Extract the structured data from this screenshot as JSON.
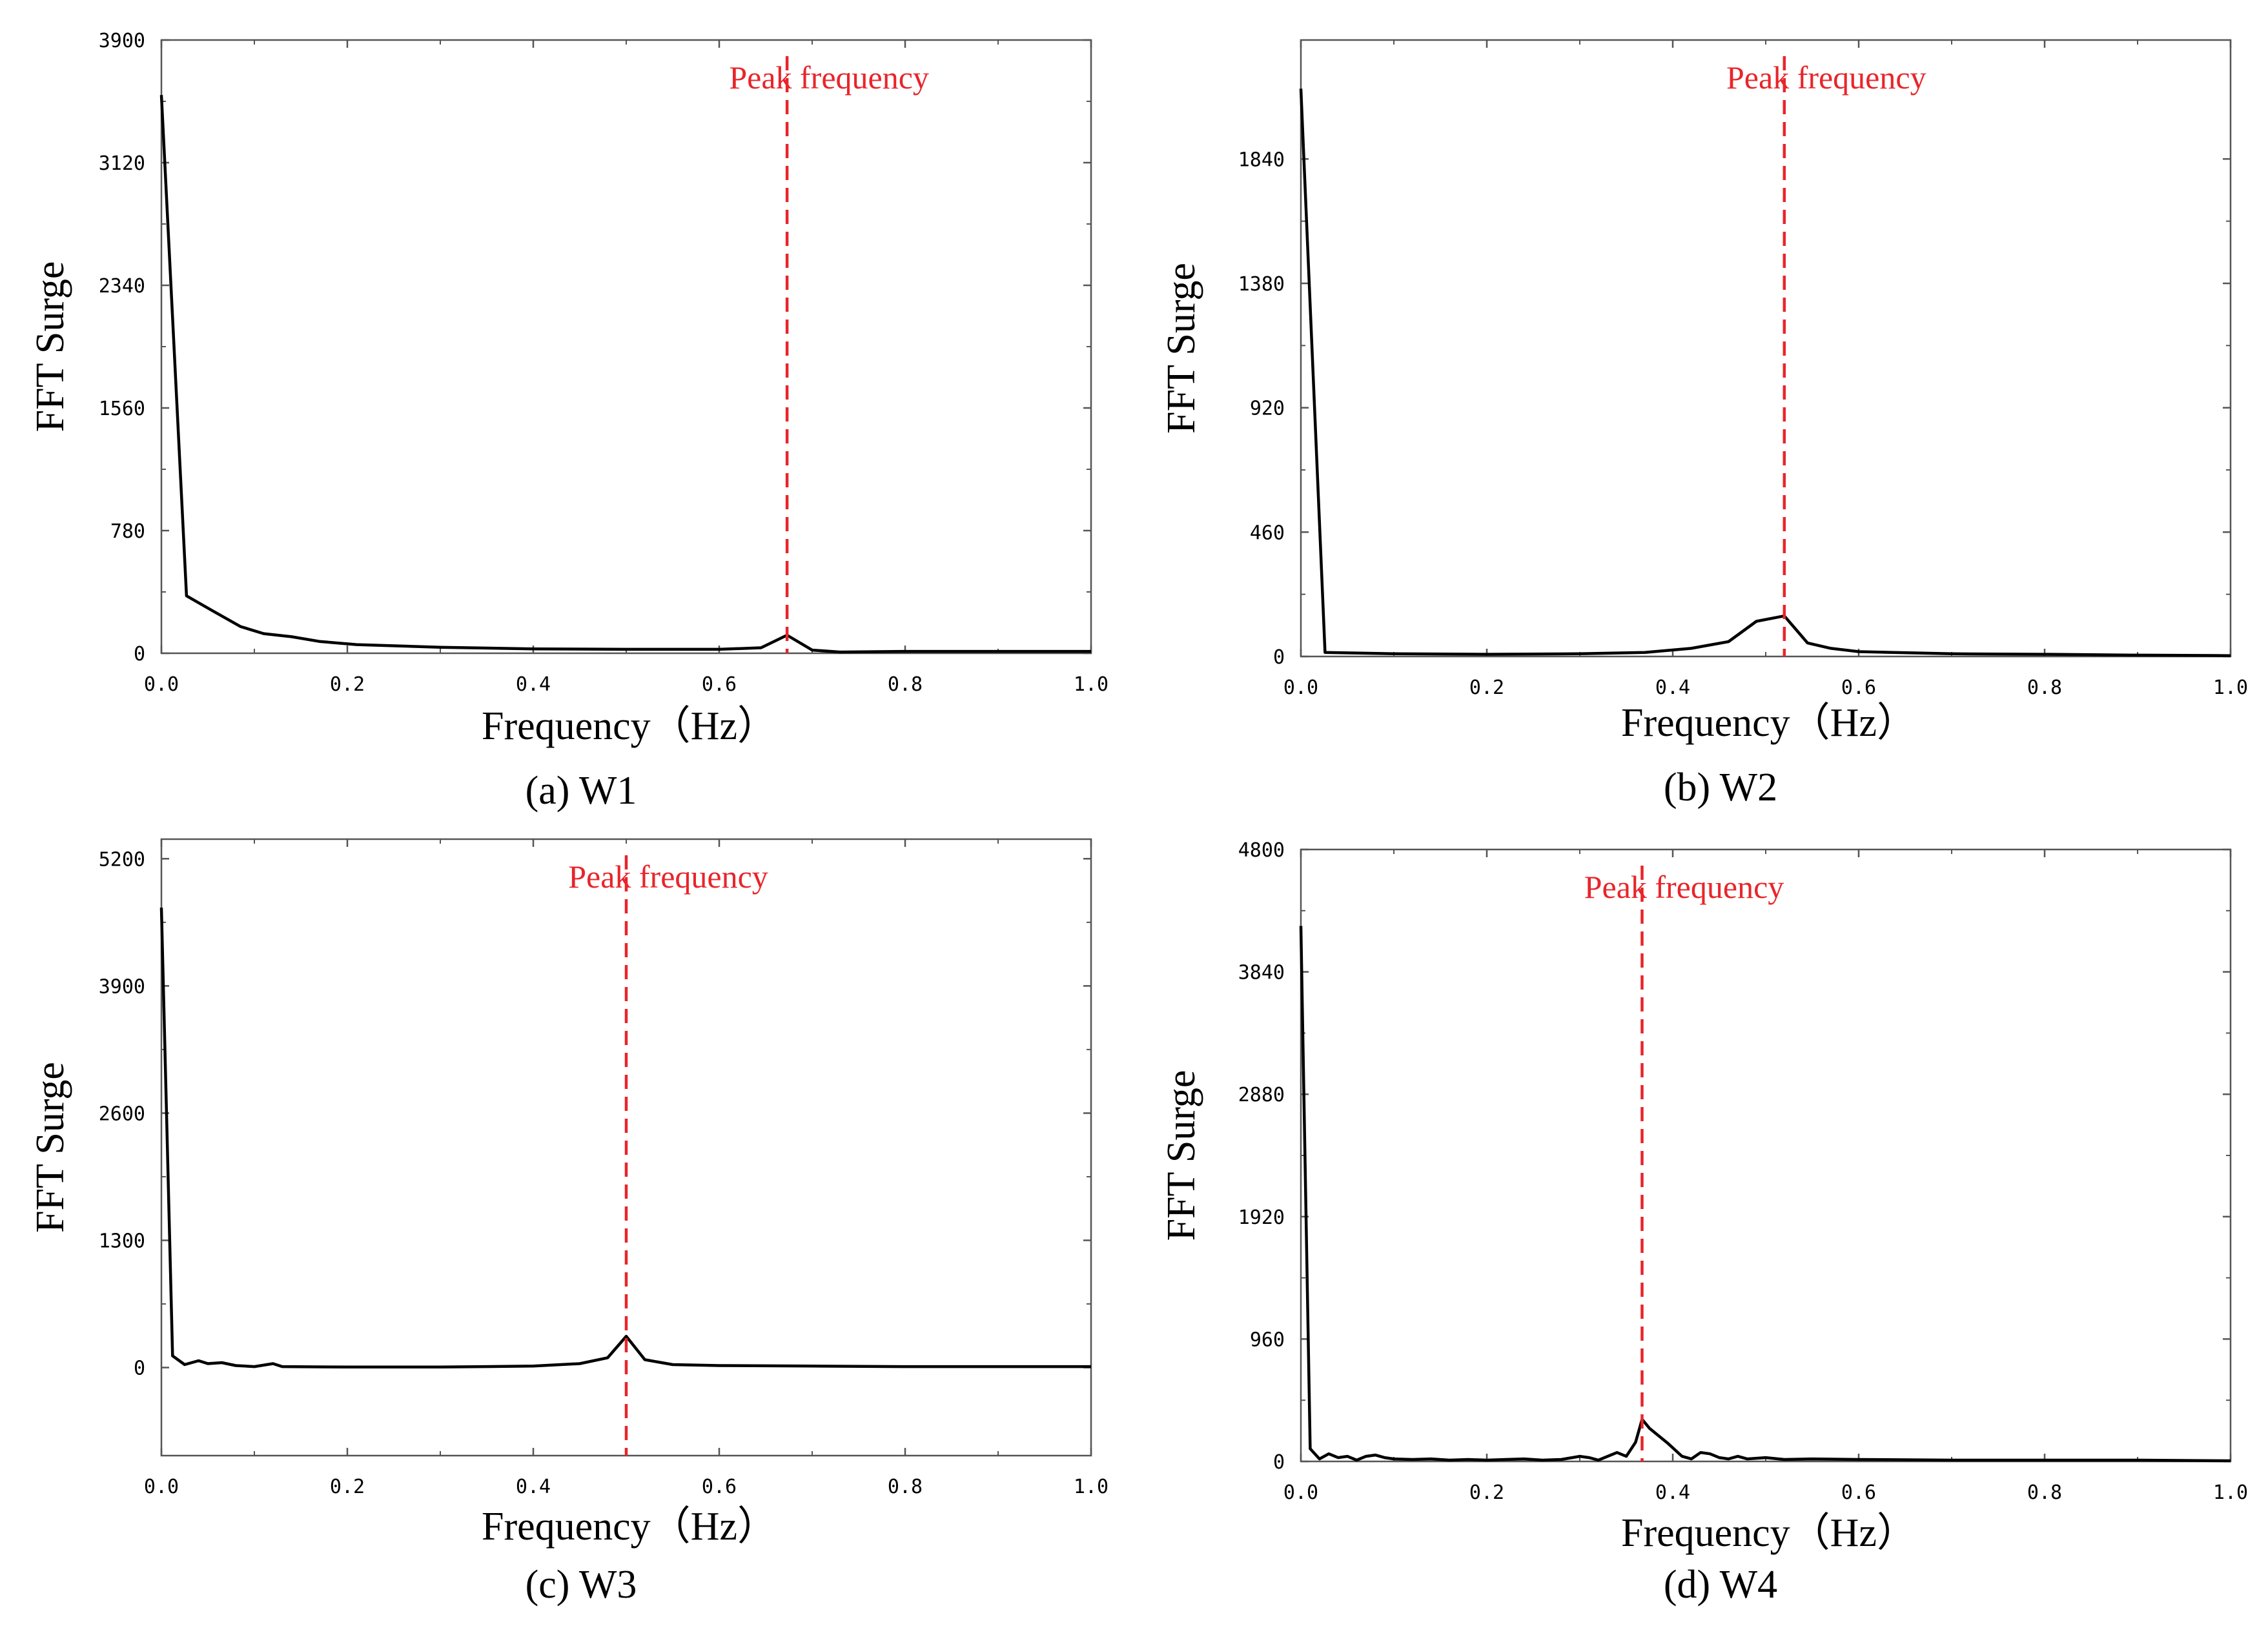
{
  "colors": {
    "series": "#000000",
    "peak_line": "#e8252a",
    "axes": "#555555"
  },
  "chart_data": [
    {
      "id": "a",
      "type": "line",
      "caption": "(a)  W1",
      "xlabel": "Frequency（Hz）",
      "ylabel": "FFT  Surge",
      "xlim": [
        0,
        1.0
      ],
      "ylim": [
        0,
        3900
      ],
      "xticks": [
        0,
        0.2,
        0.4,
        0.6,
        0.8,
        1.0
      ],
      "xtick_labels": [
        "0.0",
        "0.2",
        "0.4",
        "0.6",
        "0.8",
        "1.0"
      ],
      "yticks": [
        0,
        780,
        1560,
        2340,
        3120,
        3900
      ],
      "ytick_labels": [
        "0",
        "780",
        "1560",
        "2340",
        "3120",
        "3900"
      ],
      "annotation": {
        "text": "Peak frequency",
        "x": 0.673
      },
      "series": [
        {
          "name": "W1",
          "x": [
            0,
            0.027,
            0.055,
            0.085,
            0.11,
            0.14,
            0.17,
            0.21,
            0.3,
            0.4,
            0.5,
            0.6,
            0.645,
            0.673,
            0.7,
            0.73,
            0.8,
            0.9,
            1.0
          ],
          "y": [
            3550,
            365,
            270,
            170,
            125,
            105,
            75,
            55,
            38,
            28,
            25,
            25,
            35,
            115,
            20,
            8,
            12,
            12,
            12
          ]
        }
      ]
    },
    {
      "id": "b",
      "type": "line",
      "caption": "(b)  W2",
      "xlabel": "Frequency（Hz）",
      "ylabel": "FFT  Surge",
      "xlim": [
        0,
        1.0
      ],
      "ylim": [
        0,
        2280
      ],
      "xticks": [
        0,
        0.2,
        0.4,
        0.6,
        0.8,
        1.0
      ],
      "xtick_labels": [
        "0.0",
        "0.2",
        "0.4",
        "0.6",
        "0.8",
        "1.0"
      ],
      "yticks": [
        0,
        460,
        920,
        1380,
        1840
      ],
      "ytick_labels": [
        "0",
        "460",
        "920",
        "1380",
        "1840"
      ],
      "annotation": {
        "text": "Peak frequency",
        "x": 0.52
      },
      "series": [
        {
          "name": "W2",
          "x": [
            0,
            0.026,
            0.1,
            0.2,
            0.3,
            0.37,
            0.42,
            0.46,
            0.49,
            0.52,
            0.545,
            0.57,
            0.6,
            0.7,
            0.8,
            0.9,
            1.0
          ],
          "y": [
            2100,
            15,
            10,
            8,
            10,
            15,
            30,
            55,
            130,
            150,
            50,
            30,
            18,
            10,
            8,
            5,
            3
          ]
        }
      ]
    },
    {
      "id": "c",
      "type": "line",
      "caption": "(c)  W3",
      "xlabel": "Frequency（Hz）",
      "ylabel": "FFT  Surge",
      "xlim": [
        0,
        1.0
      ],
      "ylim": [
        -900,
        5400
      ],
      "xticks": [
        0,
        0.2,
        0.4,
        0.6,
        0.8,
        1.0
      ],
      "xtick_labels": [
        "0.0",
        "0.2",
        "0.4",
        "0.6",
        "0.8",
        "1.0"
      ],
      "yticks": [
        0,
        1300,
        2600,
        3900,
        5200
      ],
      "ytick_labels": [
        "0",
        "1300",
        "2600",
        "3900",
        "5200"
      ],
      "annotation": {
        "text": "Peak frequency",
        "x": 0.5
      },
      "series": [
        {
          "name": "W3",
          "x": [
            0,
            0.012,
            0.025,
            0.04,
            0.05,
            0.065,
            0.08,
            0.1,
            0.12,
            0.13,
            0.2,
            0.3,
            0.4,
            0.45,
            0.48,
            0.5,
            0.52,
            0.55,
            0.6,
            0.7,
            0.8,
            0.9,
            1.0
          ],
          "y": [
            4700,
            120,
            30,
            70,
            40,
            50,
            20,
            10,
            40,
            10,
            5,
            5,
            15,
            40,
            100,
            320,
            80,
            30,
            20,
            15,
            10,
            10,
            10
          ]
        }
      ]
    },
    {
      "id": "d",
      "type": "line",
      "caption": "(d)  W4",
      "xlabel": "Frequency（Hz）",
      "ylabel": "FFT  Surge",
      "xlim": [
        0,
        1.0
      ],
      "ylim": [
        0,
        4800
      ],
      "xticks": [
        0,
        0.2,
        0.4,
        0.6,
        0.8,
        1.0
      ],
      "xtick_labels": [
        "0.0",
        "0.2",
        "0.4",
        "0.6",
        "0.8",
        "1.0"
      ],
      "yticks": [
        0,
        960,
        1920,
        2880,
        3840,
        4800
      ],
      "ytick_labels": [
        "0",
        "960",
        "1920",
        "2880",
        "3840",
        "4800"
      ],
      "annotation": {
        "text": "Peak frequency",
        "x": 0.367
      },
      "series": [
        {
          "name": "W4",
          "x": [
            0,
            0.01,
            0.02,
            0.03,
            0.04,
            0.05,
            0.06,
            0.07,
            0.08,
            0.09,
            0.1,
            0.12,
            0.14,
            0.16,
            0.18,
            0.2,
            0.22,
            0.24,
            0.26,
            0.28,
            0.3,
            0.31,
            0.32,
            0.34,
            0.35,
            0.36,
            0.367,
            0.375,
            0.385,
            0.395,
            0.41,
            0.42,
            0.43,
            0.44,
            0.45,
            0.46,
            0.47,
            0.48,
            0.5,
            0.52,
            0.55,
            0.6,
            0.7,
            0.8,
            0.9,
            1.0
          ],
          "y": [
            4200,
            100,
            20,
            60,
            30,
            40,
            10,
            40,
            50,
            30,
            20,
            15,
            20,
            10,
            15,
            10,
            15,
            20,
            10,
            15,
            40,
            30,
            10,
            70,
            40,
            150,
            330,
            260,
            200,
            140,
            40,
            20,
            70,
            60,
            30,
            20,
            40,
            20,
            30,
            15,
            20,
            15,
            10,
            10,
            10,
            5
          ]
        }
      ]
    }
  ]
}
